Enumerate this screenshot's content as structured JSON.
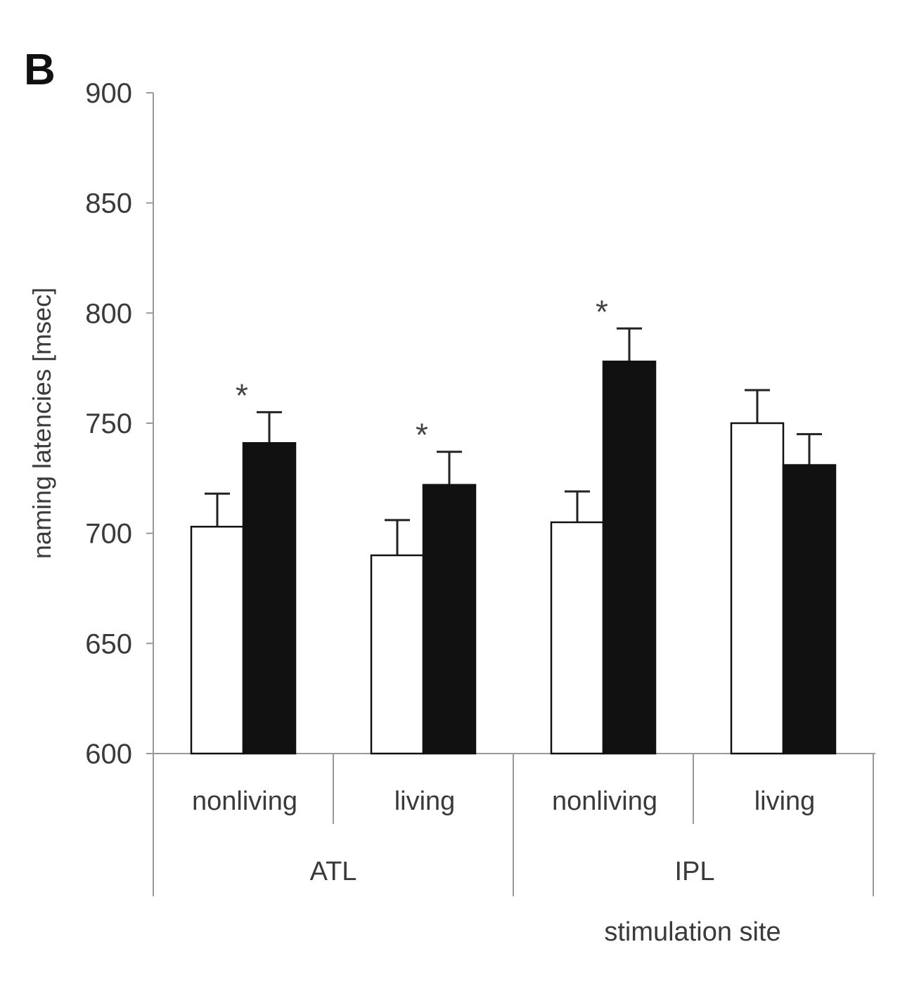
{
  "panel_label": "B",
  "chart_data": {
    "type": "bar",
    "title": "",
    "ylabel": "naming latencies [msec]",
    "xlabel": "stimulation site",
    "ylim": [
      600,
      900
    ],
    "yticks": [
      600,
      650,
      700,
      750,
      800,
      850,
      900
    ],
    "grid": false,
    "legend": "none",
    "groups": [
      {
        "label": "ATL",
        "categories": [
          {
            "label": "nonliving",
            "bars": [
              {
                "fill": "#ffffff",
                "value": 703,
                "error": 15,
                "significant": false
              },
              {
                "fill": "#111111",
                "value": 741,
                "error": 14,
                "significant": true
              }
            ]
          },
          {
            "label": "living",
            "bars": [
              {
                "fill": "#ffffff",
                "value": 690,
                "error": 16,
                "significant": false
              },
              {
                "fill": "#111111",
                "value": 722,
                "error": 15,
                "significant": true
              }
            ]
          }
        ]
      },
      {
        "label": "IPL",
        "categories": [
          {
            "label": "nonliving",
            "bars": [
              {
                "fill": "#ffffff",
                "value": 705,
                "error": 14,
                "significant": false
              },
              {
                "fill": "#111111",
                "value": 778,
                "error": 15,
                "significant": true
              }
            ]
          },
          {
            "label": "living",
            "bars": [
              {
                "fill": "#ffffff",
                "value": 750,
                "error": 15,
                "significant": false
              },
              {
                "fill": "#111111",
                "value": 731,
                "error": 14,
                "significant": false
              }
            ]
          }
        ]
      }
    ],
    "significance_marker": "*"
  }
}
